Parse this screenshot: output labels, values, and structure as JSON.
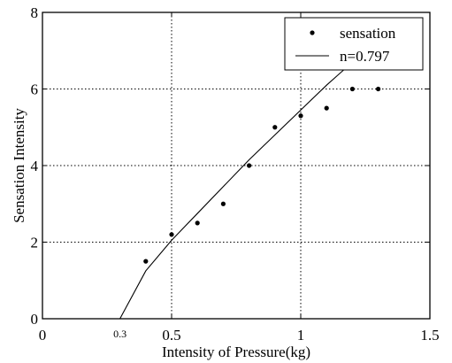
{
  "chart_data": {
    "type": "scatter",
    "xlabel": "Intensity of Pressure(kg)",
    "ylabel": "Sensation Intensity",
    "xlim": [
      0,
      1.5
    ],
    "ylim": [
      0,
      8
    ],
    "x_ticks": [
      {
        "value": 0,
        "label": "0"
      },
      {
        "value": 0.3,
        "label": "0.3"
      },
      {
        "value": 0.5,
        "label": "0.5"
      },
      {
        "value": 1,
        "label": "1"
      },
      {
        "value": 1.5,
        "label": "1.5"
      }
    ],
    "y_ticks": [
      {
        "value": 0,
        "label": "0"
      },
      {
        "value": 2,
        "label": "2"
      },
      {
        "value": 4,
        "label": "4"
      },
      {
        "value": 6,
        "label": "6"
      },
      {
        "value": 8,
        "label": "8"
      }
    ],
    "grid_x": [
      0.5,
      1
    ],
    "grid_y": [
      2,
      4,
      6
    ],
    "legend_position": "top-right",
    "series": [
      {
        "name": "sensation",
        "kind": "points",
        "x": [
          0.4,
          0.5,
          0.6,
          0.7,
          0.8,
          0.9,
          1.0,
          1.1,
          1.2,
          1.3
        ],
        "y": [
          1.5,
          2.2,
          2.5,
          3.0,
          4.0,
          5.0,
          5.3,
          5.5,
          6.0,
          6.0
        ]
      },
      {
        "name": "n=0.797",
        "kind": "line",
        "x": [
          0.3,
          0.4,
          0.5,
          0.6,
          0.7,
          0.8,
          0.9,
          1.0,
          1.1,
          1.2,
          1.3
        ],
        "y": [
          0.0,
          1.25,
          2.05,
          2.75,
          3.45,
          4.15,
          4.8,
          5.45,
          6.1,
          6.7,
          7.3
        ]
      }
    ]
  }
}
